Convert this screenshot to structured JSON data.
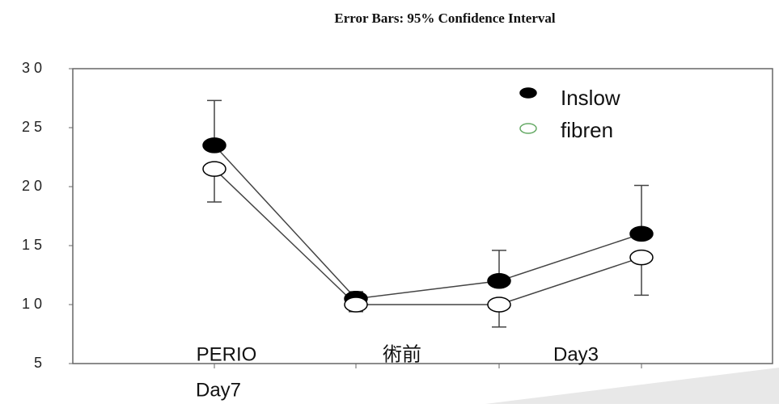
{
  "chart_data": {
    "type": "line",
    "title": "Error Bars: 95% Confidence Interval",
    "categories": [
      "PERIO",
      "術前",
      "Day3",
      "Day7"
    ],
    "series": [
      {
        "name": "Inslow",
        "color": "#000000",
        "values": [
          23.5,
          10.5,
          12,
          16
        ],
        "errors": [
          3.8,
          0.6,
          2.6,
          4.1
        ]
      },
      {
        "name": "fibren",
        "color": "#ffffff",
        "values": [
          21.5,
          10,
          10,
          14
        ],
        "errors": [
          2.8,
          0.6,
          1.9,
          3.2
        ]
      }
    ],
    "ylim": [
      5,
      30
    ],
    "yticks": [
      5,
      {
        "value": 10,
        "label": "1 0"
      },
      {
        "value": 15,
        "label": "1 5"
      },
      {
        "value": 20,
        "label": "2 0"
      },
      {
        "value": 25,
        "label": "2 5"
      },
      {
        "value": 30,
        "label": "3 0"
      }
    ],
    "legend": "upper right"
  }
}
